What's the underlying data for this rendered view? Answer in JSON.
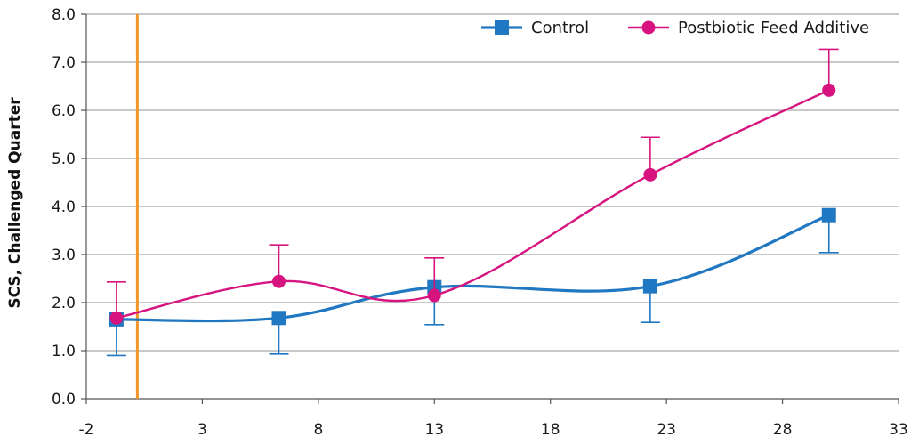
{
  "chart_data": {
    "type": "line",
    "title": "",
    "xlabel": "",
    "ylabel": "SCS, Challenged Quarter",
    "xlim": [
      -2,
      33
    ],
    "ylim": [
      0,
      8
    ],
    "xticks": [
      -2,
      3,
      8,
      13,
      18,
      23,
      28,
      33
    ],
    "yticks": [
      0,
      1,
      2,
      3,
      4,
      5,
      6,
      7,
      8
    ],
    "xtick_labels": [
      "-2",
      "3",
      "8",
      "13",
      "18",
      "23",
      "28",
      "33"
    ],
    "ytick_labels": [
      "0.0",
      "1.0",
      "2.0",
      "3.0",
      "4.0",
      "5.0",
      "6.0",
      "7.0",
      "8.0"
    ],
    "grid": "horizontal",
    "legend_position": "top-right",
    "vertical_marker_x": 0.2,
    "series": [
      {
        "name": "Control",
        "color": "#1f78c1",
        "marker": "square",
        "error_bar_direction": "down",
        "x": [
          -0.7,
          6.3,
          13,
          22.3,
          30
        ],
        "y": [
          1.65,
          1.68,
          2.32,
          2.34,
          3.82
        ],
        "error": [
          0.75,
          0.75,
          0.78,
          0.75,
          0.78
        ]
      },
      {
        "name": "Postbiotic Feed Additive",
        "color": "#d6137e",
        "marker": "circle",
        "error_bar_direction": "up",
        "x": [
          -0.7,
          6.3,
          13,
          22.3,
          30
        ],
        "y": [
          1.68,
          2.44,
          2.15,
          4.66,
          6.42
        ],
        "error": [
          0.75,
          0.76,
          0.78,
          0.78,
          0.85
        ]
      }
    ]
  }
}
